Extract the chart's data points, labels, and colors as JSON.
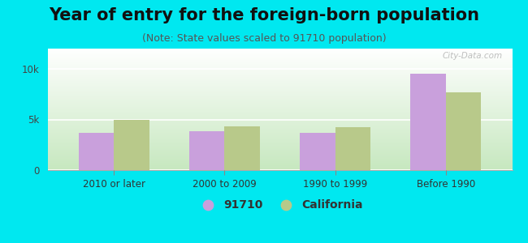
{
  "title": "Year of entry for the foreign-born population",
  "subtitle": "(Note: State values scaled to 91710 population)",
  "categories": [
    "2010 or later",
    "2000 to 2009",
    "1990 to 1999",
    "Before 1990"
  ],
  "values_91710": [
    3700,
    3850,
    3650,
    9500
  ],
  "values_california": [
    4950,
    4350,
    4250,
    7700
  ],
  "bar_color_91710": "#c9a0dc",
  "bar_color_california": "#b8c98a",
  "background_outer": "#00e8f0",
  "ylim": [
    0,
    12000
  ],
  "yticks": [
    0,
    5000,
    10000
  ],
  "ytick_labels": [
    "0",
    "5k",
    "10k"
  ],
  "legend_label_91710": "91710",
  "legend_label_california": "California",
  "bar_width": 0.32,
  "title_fontsize": 15,
  "subtitle_fontsize": 9,
  "watermark": "City-Data.com",
  "gradient_top_color": "#ffffff",
  "gradient_bottom_left_color": "#c8e8c0",
  "grid_color": "#ffffff"
}
